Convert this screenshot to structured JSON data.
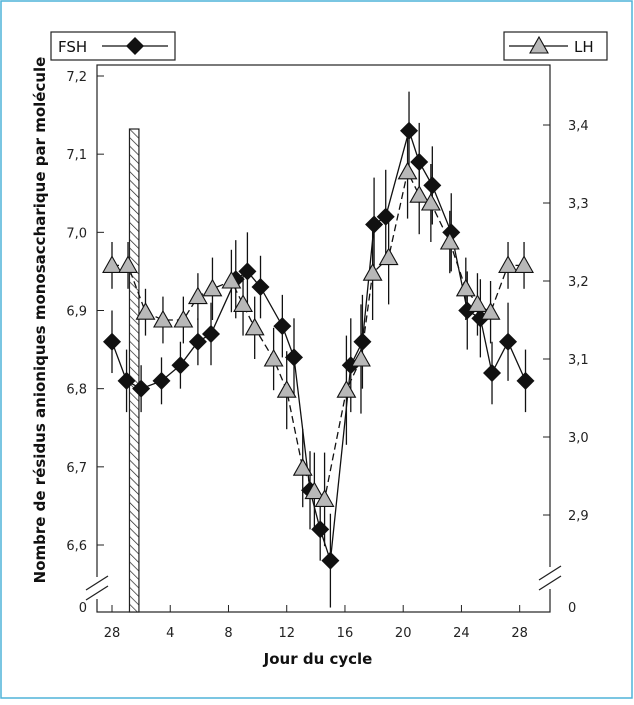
{
  "chart_data": {
    "type": "line",
    "title": "",
    "xlabel": "Jour du cycle",
    "ylabel_left": "Nombre de résidus anioniques monosaccharique par molécule",
    "ylabel_right": "",
    "x_ticks": [
      "28",
      "4",
      "8",
      "12",
      "16",
      "20",
      "24",
      "28"
    ],
    "y_left_ticks": [
      "0",
      "6,6",
      "6,7",
      "6,8",
      "6,9",
      "7,0",
      "7,1",
      "7,2"
    ],
    "y_right_ticks": [
      "0",
      "2,9",
      "3,0",
      "3,1",
      "3,2",
      "3,3",
      "3,4"
    ],
    "ylim_left": [
      6.55,
      7.2
    ],
    "ylim_right": [
      2.84,
      3.43
    ],
    "x_index_range": [
      -0.6,
      28.6
    ],
    "axis_break": true,
    "grid": false,
    "series": [
      {
        "name": "FSH",
        "axis": "left",
        "marker": "diamond",
        "color": "#111111",
        "line_style": "solid",
        "x_index": [
          0,
          1,
          2,
          3.4,
          4.7,
          5.9,
          6.8,
          8.5,
          9.3,
          10.2,
          11.7,
          12.5,
          13.6,
          14.3,
          15.0,
          16.4,
          17.2,
          18.0,
          18.8,
          20.4,
          21.1,
          22.0,
          23.3,
          24.4,
          25.3,
          26.1,
          27.2,
          28.4
        ],
        "values": [
          6.86,
          6.81,
          6.8,
          6.81,
          6.83,
          6.86,
          6.87,
          6.94,
          6.95,
          6.93,
          6.88,
          6.84,
          6.67,
          6.62,
          6.58,
          6.83,
          6.86,
          7.01,
          7.02,
          7.13,
          7.09,
          7.06,
          7.0,
          6.9,
          6.89,
          6.82,
          6.86,
          6.81
        ],
        "error": [
          0.04,
          0.04,
          0.03,
          0.03,
          0.03,
          0.03,
          0.04,
          0.05,
          0.05,
          0.04,
          0.04,
          0.05,
          0.05,
          0.04,
          0.06,
          0.06,
          0.06,
          0.06,
          0.06,
          0.05,
          0.05,
          0.05,
          0.05,
          0.05,
          0.05,
          0.04,
          0.05,
          0.04
        ]
      },
      {
        "name": "LH",
        "axis": "right",
        "marker": "triangle",
        "color": "#b8b8b8",
        "line_style": "dashed",
        "x_index": [
          0,
          1.1,
          2.3,
          3.5,
          4.9,
          5.9,
          6.9,
          8.2,
          9.0,
          9.8,
          11.1,
          12.0,
          13.1,
          13.9,
          14.6,
          16.1,
          17.1,
          17.9,
          19.0,
          20.3,
          21.1,
          21.9,
          23.2,
          24.3,
          25.1,
          26.0,
          27.2,
          28.3
        ],
        "values": [
          3.22,
          3.22,
          3.16,
          3.15,
          3.15,
          3.18,
          3.19,
          3.2,
          3.17,
          3.14,
          3.1,
          3.06,
          2.96,
          2.93,
          2.92,
          3.06,
          3.1,
          3.21,
          3.23,
          3.34,
          3.31,
          3.3,
          3.25,
          3.19,
          3.17,
          3.16,
          3.22,
          3.22
        ],
        "error": [
          0.03,
          0.03,
          0.03,
          0.03,
          0.03,
          0.03,
          0.04,
          0.04,
          0.04,
          0.04,
          0.04,
          0.05,
          0.05,
          0.05,
          0.06,
          0.07,
          0.07,
          0.06,
          0.06,
          0.06,
          0.05,
          0.05,
          0.04,
          0.04,
          0.04,
          0.04,
          0.03,
          0.03
        ]
      }
    ],
    "legend": [
      {
        "label": "FSH",
        "marker": "diamond",
        "placement": "top-left"
      },
      {
        "label": "LH",
        "marker": "triangle",
        "placement": "top-right"
      }
    ],
    "annotations": [
      {
        "type": "hatched-bar",
        "x_index_from": 1.2,
        "x_index_to": 1.85
      }
    ]
  }
}
